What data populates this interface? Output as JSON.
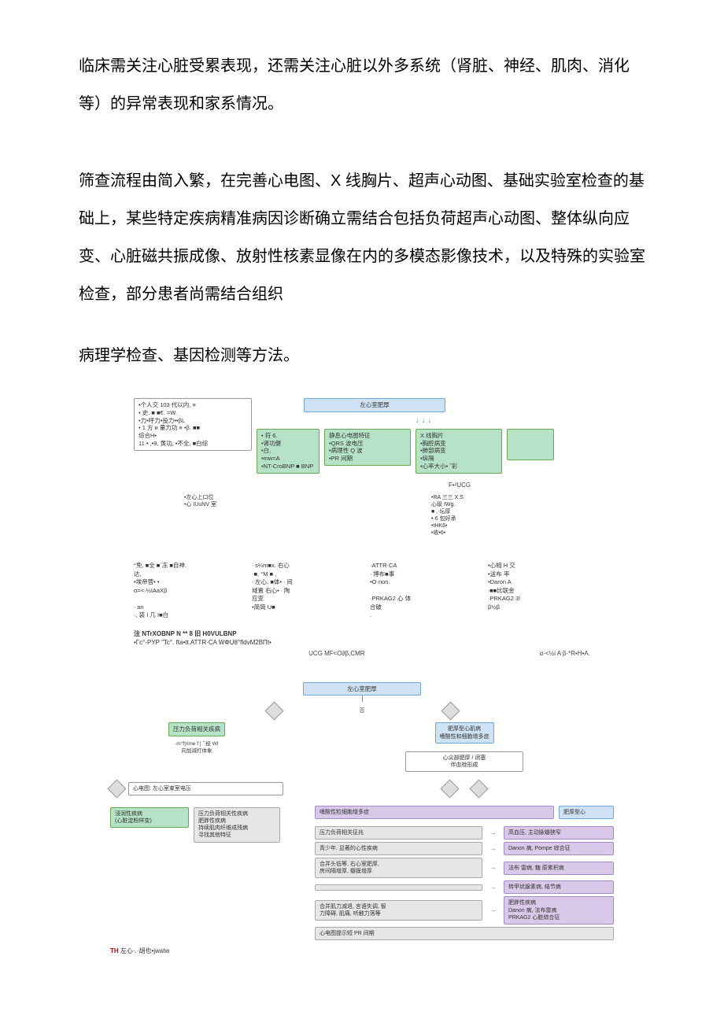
{
  "paragraphs": {
    "p1": "临床需关注心脏受累表现，还需关注心脏以外多系统（肾脏、神经、肌肉、消化等）的异常表现和家系情况。",
    "p2": "筛查流程由简入繁，在完善心电图、X 线胸片、超声心动图、基础实验室检查的基础上，某些特定疾病精准病因诊断确立需结合包括负荷超声心动图、整体纵向应变、心脏磁共振成像、放射性核素显像在内的多模态影像技术，以及特殊的实验室检查，部分患者尚需结合组织",
    "p3": "病理学检查、基因检测等方法。"
  },
  "chart1": {
    "colors": {
      "blue_bg": "#cfe2f3",
      "blue_border": "#6fa8dc",
      "green_bg": "#b6e3c8",
      "green_border": "#6aa84f",
      "text": "#333333"
    },
    "history_box": "•个人交 103 代以内, ≡\n• 史. ■ ■€. =W.\n•力•呼力•投力••βL\n• 1 方 и 量力功 ≡ •β. ■■\n综合H•\n11 • ,•9, 黄功, •不全, ■白综",
    "top_title": "左心室肥厚",
    "symp_box": "• 符 6.\n•肾功健\n•白,\n•mw=A\n•NT-CroBNP ■ BNP",
    "ecg_box": "静息心电图特征\n•QRS 波电压\n•病理性 Q 波\n•PR 间期",
    "xray_box": "X 线胸片\n•胸腔病变\n•肺部病变\n•纵隔\n•心率大小• ˝彩",
    "echo_label": "F•²UCG",
    "echo_left": "•左心上口位\n•心 IUuNV 室",
    "echo_right": "•RA 三三 X.S\n心级 IWg.\n■ ,·坛厚\n•·6 包好承\n•tHK6•\n•收•6•",
    "bottom_cols": {
      "c1": "°免, ■全 ■´冻 ■自神.\n达,\n•埃帝营• •\nα=<·½IAaXβ\n\n∙ an\n·, 装 I 几 I■白",
      "c2": "∙ s¼m■x. 右心\n·■, °M ■ ,\n∙ 左心. ■体• ∙ 间\n域置 右心• ∙ 陶\n应变\n•简简 U■",
      "c3": "·ATTR·CA\n∙ 博布■事\n•O·non.\n\n·PRKAG2 心 体\n合破\n.",
      "c4": "•心相 H 交\n•送布·率\n•Daron A\n∙■■比联金\n·PRKAG2 3!\nβ½β"
    },
    "notes_line1": "注 NTrXOBNP N ** 8 旧 H0VULBNP",
    "notes_line2": "•Гc°-PYP \"Tc°. fta•tt.ATTR·CA WΦU8°fldvM2BΠt•",
    "legend_mid": "UCG MF<O∂β,CMR",
    "legend_right": "α·<½i A β·*R•H•A."
  },
  "chart2": {
    "top_title": "左心室肥厚",
    "split_label": "否",
    "left_green": "压力负荷相关疾病",
    "left_sub": "∙m°f¦rime f ¦ ˝ 经 WI\n向加减打体象",
    "right_top": "肥厚型心肌病\n嗜酸性和细胞增多症",
    "right_q": "心尖部肥厚 / 闭塞\n伴血栓形成",
    "r_purple1": "嗜酸性粒细胞增多症",
    "r_blue_small": "肥厚型心",
    "ecg_box": "心电图: 左心室束室电压",
    "l_green2": "浸润性疾病\n(心脏淀粉样变)",
    "l_gray": "压力负荷相关性疾病\n肥胖性疾病\n持续肌肉纤维成残病\n寻找其他特征",
    "rows": [
      {
        "l": "压力负荷相关征兆",
        "r": "高血压, 主动脉瓣狭窄"
      },
      {
        "l": "青少年. 显著的心性疾病",
        "r": "Danon 病, Pompe 综合征"
      },
      {
        "l": "合并头低等, 右心室肥厚,\n房间隔增厚, 瓣膜增厚",
        "r": "法布 雷病, 糖 原累积病"
      },
      {
        "l": " ",
        "r": "转甲状腺素病, 结节病"
      },
      {
        "l": "合并肌力减退, 言语失调, 智\n力障碍, 肌痛, 听触力落等",
        "r": "肥胖性疾病\nDanon 病, 法布雷病\nPRKAG2 心脏综合征"
      },
      {
        "l": "心电图提示短 PR 间期",
        "r": ""
      }
    ],
    "caption_red": "TH",
    "caption_rest": " 左心·.·胡也•jwatw"
  }
}
